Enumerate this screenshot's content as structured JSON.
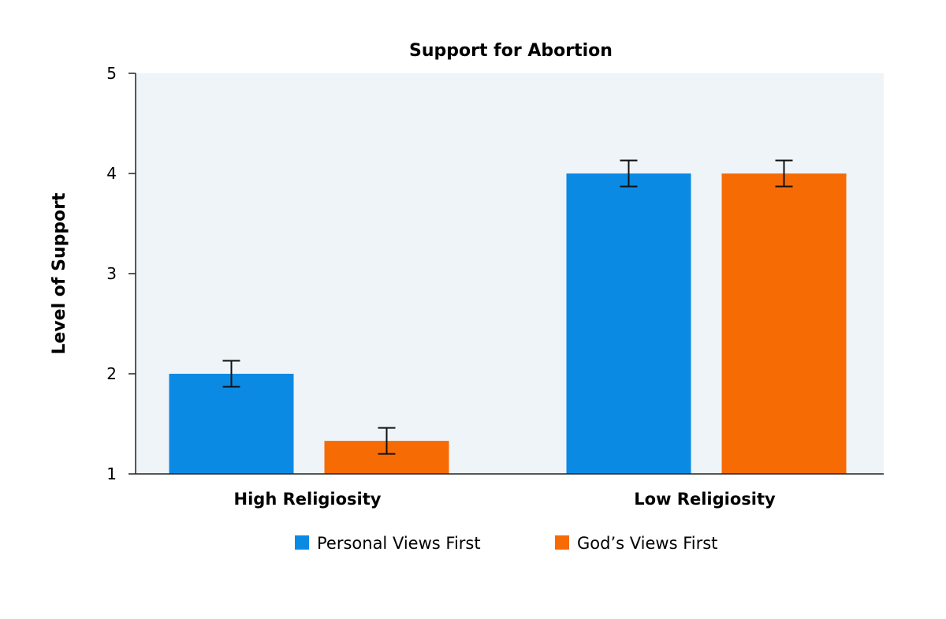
{
  "chart_data": {
    "type": "bar",
    "title": "Support for Abortion",
    "xlabel": "",
    "ylabel": "Level of Support",
    "ylim": [
      1,
      5
    ],
    "yticks": [
      "1",
      "2",
      "3",
      "4",
      "5"
    ],
    "categories": [
      "High Religiosity",
      "Low Religiosity"
    ],
    "series": [
      {
        "name": "Personal Views First",
        "color": "#0b8ae4",
        "values": [
          2.0,
          4.0
        ],
        "error": [
          0.13,
          0.13
        ]
      },
      {
        "name": "God’s Views First",
        "color": "#f76b05",
        "values": [
          1.33,
          4.0
        ],
        "error": [
          0.13,
          0.13
        ]
      }
    ],
    "legend_position": "bottom",
    "plot_background": "#eef4f8"
  }
}
